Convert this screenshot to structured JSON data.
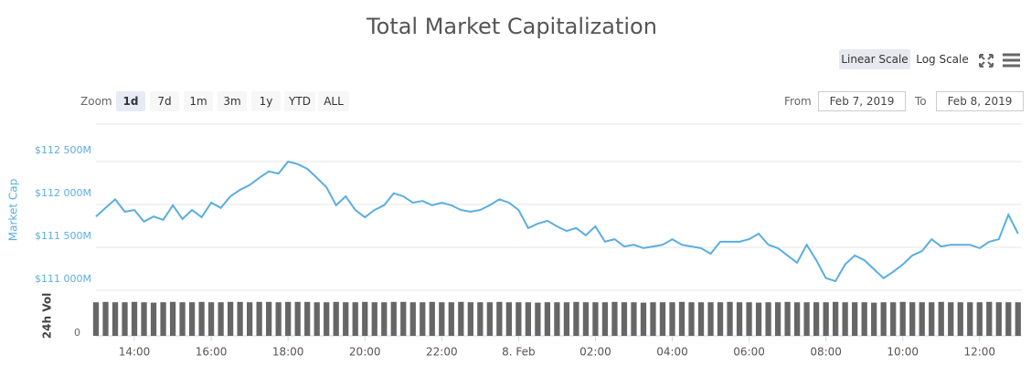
{
  "chart_data": {
    "type": "line",
    "title": "Total Market Capitalization",
    "y_label": "Market Cap",
    "color": "#5aaee0",
    "x": [
      13,
      13.25,
      13.5,
      13.75,
      14,
      14.25,
      14.5,
      14.75,
      15,
      15.25,
      15.5,
      15.75,
      16,
      16.25,
      16.5,
      16.75,
      17,
      17.25,
      17.5,
      17.75,
      18,
      18.25,
      18.5,
      18.75,
      19,
      19.25,
      19.5,
      19.75,
      20,
      20.25,
      20.5,
      20.75,
      21,
      21.25,
      21.5,
      21.75,
      22,
      22.25,
      22.5,
      22.75,
      23,
      23.25,
      23.5,
      23.75,
      24,
      24.25,
      24.5,
      24.75,
      25,
      25.25,
      25.5,
      25.75,
      26,
      26.25,
      26.5,
      26.75,
      27,
      27.25,
      27.5,
      27.75,
      28,
      28.25,
      28.5,
      28.75,
      29,
      29.25,
      29.5,
      29.75,
      30,
      30.25,
      30.5,
      30.75,
      31,
      31.25,
      31.5,
      31.75,
      32,
      32.25,
      32.5,
      32.75,
      33,
      33.25,
      33.5,
      33.75,
      34,
      34.25,
      34.5,
      34.75,
      35,
      35.25,
      35.5,
      35.75,
      36,
      36.25,
      36.5,
      36.75,
      37
    ],
    "values": [
      111860,
      111960,
      112060,
      111915,
      111935,
      111800,
      111860,
      111820,
      111990,
      111830,
      111935,
      111850,
      112020,
      111960,
      112095,
      112170,
      112225,
      112310,
      112385,
      112360,
      112500,
      112470,
      112415,
      112310,
      112200,
      111990,
      112095,
      111935,
      111850,
      111935,
      111990,
      112130,
      112095,
      112020,
      112040,
      111990,
      112020,
      111990,
      111935,
      111915,
      111935,
      111990,
      112060,
      112020,
      111935,
      111725,
      111775,
      111810,
      111745,
      111690,
      111725,
      111640,
      111745,
      111565,
      111595,
      111510,
      111530,
      111490,
      111510,
      111530,
      111595,
      111530,
      111510,
      111490,
      111425,
      111565,
      111565,
      111565,
      111595,
      111660,
      111530,
      111490,
      111405,
      111320,
      111530,
      111350,
      111140,
      111105,
      111300,
      111405,
      111350,
      111245,
      111140,
      111215,
      111300,
      111405,
      111455,
      111595,
      111510,
      111530,
      111530,
      111530,
      111490,
      111565,
      111595,
      111880,
      111660
    ],
    "xlim": [
      13,
      37.1
    ],
    "xticks": [
      {
        "value": 14,
        "label": "14:00"
      },
      {
        "value": 16,
        "label": "16:00"
      },
      {
        "value": 18,
        "label": "18:00"
      },
      {
        "value": 20,
        "label": "20:00"
      },
      {
        "value": 22,
        "label": "22:00"
      },
      {
        "value": 24,
        "label": "8. Feb"
      },
      {
        "value": 26,
        "label": "02:00"
      },
      {
        "value": 28,
        "label": "04:00"
      },
      {
        "value": 30,
        "label": "06:00"
      },
      {
        "value": 32,
        "label": "08:00"
      },
      {
        "value": 34,
        "label": "10:00"
      },
      {
        "value": 36,
        "label": "12:00"
      }
    ],
    "ylim": [
      111000,
      113000
    ],
    "yticks": [
      {
        "value": 111000,
        "label": "$111 000M"
      },
      {
        "value": 111500,
        "label": "$111 500M"
      },
      {
        "value": 112000,
        "label": "$112 000M"
      },
      {
        "value": 112500,
        "label": "$112 500M"
      }
    ],
    "grid": true,
    "volume": {
      "label": "24h Vol",
      "color": "#666666",
      "ylim": [
        0,
        100
      ],
      "yticks": [
        0
      ],
      "values": [
        92,
        93,
        92,
        92,
        93,
        92,
        91,
        92,
        93,
        92,
        92,
        93,
        92,
        92,
        93,
        93,
        92,
        93,
        93,
        92,
        93,
        93,
        93,
        92,
        92,
        93,
        92,
        92,
        93,
        92,
        92,
        93,
        93,
        92,
        92,
        93,
        92,
        92,
        93,
        92,
        92,
        92,
        93,
        92,
        92,
        92,
        91,
        92,
        92,
        92,
        93,
        92,
        92,
        92,
        93,
        92,
        92,
        91,
        92,
        92,
        92,
        93,
        92,
        92,
        92,
        92,
        93,
        92,
        92,
        91,
        92,
        92,
        93,
        92,
        92,
        92,
        92,
        93,
        92,
        92,
        92,
        91,
        92,
        92,
        93,
        92,
        92,
        92,
        93,
        92,
        92,
        92,
        92,
        93,
        92,
        92,
        92
      ]
    }
  },
  "controls": {
    "scale_buttons": [
      "Linear Scale",
      "Log Scale"
    ],
    "zoom_label": "Zoom",
    "zoom_buttons": [
      "1d",
      "7d",
      "1m",
      "3m",
      "1y",
      "YTD",
      "ALL"
    ],
    "from_label": "From",
    "from_value": "Feb 7, 2019",
    "to_label": "To",
    "to_value": "Feb 8, 2019"
  }
}
